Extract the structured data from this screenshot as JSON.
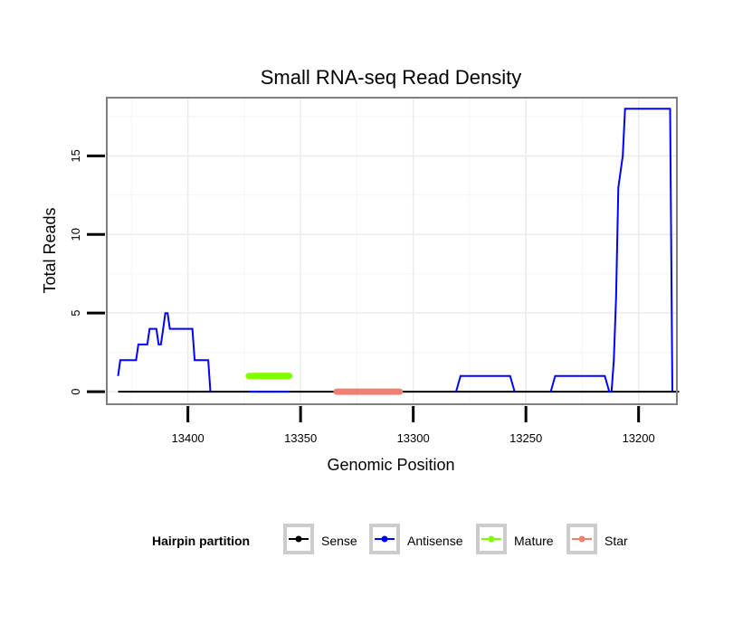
{
  "chart_data": {
    "type": "line",
    "title": "Small RNA-seq Read Density",
    "xlabel": "Genomic Position",
    "ylabel": "Total Reads",
    "x_reversed": true,
    "xlim": [
      13183,
      13436
    ],
    "ylim": [
      -0.8,
      18.7
    ],
    "x_ticks": [
      13400,
      13350,
      13300,
      13250,
      13200
    ],
    "x_tick_labels": [
      "13400",
      "13350",
      "13300",
      "13250",
      "13200"
    ],
    "y_ticks": [
      0,
      5,
      10,
      15
    ],
    "y_tick_labels": [
      "0",
      "5",
      "10",
      "15"
    ],
    "grid": true,
    "legend": {
      "title": "Hairpin partition",
      "position": "bottom",
      "entries": [
        "Sense",
        "Antisense",
        "Mature",
        "Star"
      ]
    },
    "series": [
      {
        "name": "Sense",
        "color": "#000000",
        "x": [
          13431,
          13182
        ],
        "y": [
          0,
          0
        ]
      },
      {
        "name": "Antisense",
        "color": "#0000ff",
        "x": [
          13431,
          13430,
          13423,
          13422,
          13418,
          13417,
          13414,
          13413,
          13412,
          13411,
          13410,
          13409,
          13408,
          13407,
          13398,
          13397,
          13391,
          13390
        ],
        "y": [
          1,
          2,
          2,
          3,
          3,
          4,
          4,
          3,
          3,
          4,
          5,
          5,
          4,
          4,
          4,
          2,
          2,
          0
        ]
      },
      {
        "name": "Antisense",
        "color": "#0000ff",
        "x": [
          13373,
          13355
        ],
        "y": [
          0,
          0
        ]
      },
      {
        "name": "Antisense",
        "color": "#0000ff",
        "x": [
          13281,
          13279,
          13257,
          13255
        ],
        "y": [
          0,
          1,
          1,
          0
        ]
      },
      {
        "name": "Antisense",
        "color": "#0000ff",
        "x": [
          13239,
          13237,
          13215,
          13213,
          13212,
          13211,
          13210,
          13209,
          13207,
          13206,
          13186,
          13185
        ],
        "y": [
          0,
          1,
          1,
          0,
          0,
          2,
          6,
          13,
          15,
          18,
          18,
          0
        ]
      },
      {
        "name": "Mature",
        "color": "#7fff00",
        "x": [
          13373,
          13355
        ],
        "y": [
          1,
          1
        ]
      },
      {
        "name": "Star",
        "color": "#f08072",
        "x": [
          13334,
          13306
        ],
        "y": [
          0,
          0
        ]
      }
    ]
  }
}
